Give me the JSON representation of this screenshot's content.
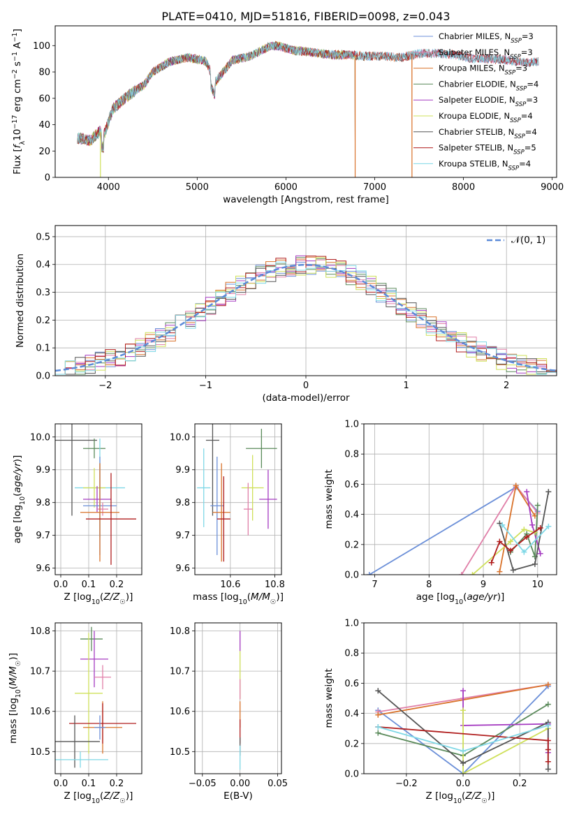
{
  "chart_data": [
    {
      "id": "spectrum",
      "type": "line",
      "title": "PLATE=0410, MJD=51816, FIBERID=0098, z=0.043",
      "xlabel": "wavelength [Angstrom, rest frame]",
      "ylabel": "Flux [f_λ10^-17 erg cm^-2 s^-1 A^-1]",
      "xlim": [
        3400,
        9050
      ],
      "ylim": [
        0,
        115
      ],
      "xticks": [
        4000,
        5000,
        6000,
        7000,
        8000,
        9000
      ],
      "yticks": [
        0,
        20,
        40,
        60,
        80,
        100
      ],
      "grid": false,
      "legend_position": "top-right",
      "continuum": {
        "x": [
          3650,
          3800,
          3900,
          3950,
          4050,
          4150,
          4300,
          4400,
          4500,
          4700,
          4900,
          5100,
          5200,
          5400,
          5600,
          5800,
          5900,
          6100,
          6300,
          6500,
          6700,
          6900,
          7100,
          7300,
          7500,
          7700,
          7900,
          8100,
          8300,
          8500,
          8700,
          8850
        ],
        "y": [
          30,
          28,
          35,
          32,
          52,
          58,
          66,
          70,
          80,
          88,
          91,
          88,
          72,
          89,
          92,
          99,
          100,
          96,
          95,
          93,
          93,
          92,
          92,
          91,
          94,
          94,
          93,
          90,
          90,
          89,
          87,
          88
        ]
      },
      "series": [
        {
          "name": "Chabrier MILES, N_SSP=3",
          "color": "#6b8fd8",
          "x_end": 8850
        },
        {
          "name": "Salpeter MILES, N_SSP=3",
          "color": "#e07fa8",
          "x_end": 8850
        },
        {
          "name": "Kroupa MILES, N_SSP=3",
          "color": "#d9722a",
          "x_end": 7420
        },
        {
          "name": "Chabrier ELODIE, N_SSP=4",
          "color": "#5a8a5a",
          "x_end": 6780
        },
        {
          "name": "Salpeter ELODIE, N_SSP=3",
          "color": "#a53bc1",
          "x_end": 6780
        },
        {
          "name": "Kroupa ELODIE, N_SSP=4",
          "color": "#cfe05a",
          "x_end": 6780
        },
        {
          "name": "Chabrier STELIB, N_SSP=4",
          "color": "#555555",
          "x_end": 8850
        },
        {
          "name": "Salpeter STELIB, N_SSP=5",
          "color": "#b01d1d",
          "x_end": 8850
        },
        {
          "name": "Kroupa STELIB, N_SSP=4",
          "color": "#7fd8e6",
          "x_end": 8850
        }
      ],
      "drops": [
        3910,
        6780,
        7420
      ]
    },
    {
      "id": "residuals",
      "type": "line",
      "xlabel": "(data-model)/error",
      "ylabel": "Normed distribution",
      "xlim": [
        -2.5,
        2.5
      ],
      "ylim": [
        0,
        0.54
      ],
      "xticks": [
        -2,
        -1,
        0,
        1,
        2
      ],
      "yticks": [
        0.0,
        0.1,
        0.2,
        0.3,
        0.4,
        0.5
      ],
      "grid": true,
      "legend_position": "top-right",
      "legend": "𝒩(0, 1)",
      "bin_width": 0.1,
      "step_series_colors": [
        "#6b8fd8",
        "#e07fa8",
        "#d9722a",
        "#5a8a5a",
        "#a53bc1",
        "#cfe05a",
        "#555555",
        "#b01d1d",
        "#7fd8e6"
      ],
      "gaussian": {
        "color": "#5b8ad8",
        "sigma": 1
      }
    },
    {
      "id": "age_vs_Z",
      "type": "scatter",
      "xlabel": "Z [log10(Z/Z☉)]",
      "ylabel": "age  [log10(age/yr)]",
      "xlim": [
        -0.02,
        0.29
      ],
      "ylim": [
        9.58,
        10.04
      ],
      "xticks": [
        0.0,
        0.1,
        0.2
      ],
      "yticks": [
        9.6,
        9.7,
        9.8,
        9.9,
        10.0
      ],
      "grid": true,
      "points": [
        {
          "color": "#555555",
          "x": 0.04,
          "y": 9.99,
          "xerr": 0.09,
          "yerr": 0.23
        },
        {
          "color": "#5a8a5a",
          "x": 0.12,
          "y": 9.965,
          "xerr": 0.04,
          "yerr": 0.03
        },
        {
          "color": "#7fd8e6",
          "x": 0.14,
          "y": 9.845,
          "xerr": 0.09,
          "yerr": 0.15
        },
        {
          "color": "#cfe05a",
          "x": 0.12,
          "y": 9.845,
          "xerr": 0.04,
          "yerr": 0.06
        },
        {
          "color": "#a53bc1",
          "x": 0.13,
          "y": 9.81,
          "xerr": 0.05,
          "yerr": 0.04
        },
        {
          "color": "#6b8fd8",
          "x": 0.14,
          "y": 9.79,
          "xerr": 0.06,
          "yerr": 0.15
        },
        {
          "color": "#e07fa8",
          "x": 0.15,
          "y": 9.78,
          "xerr": 0.02,
          "yerr": 0.02
        },
        {
          "color": "#d9722a",
          "x": 0.14,
          "y": 9.77,
          "xerr": 0.07,
          "yerr": 0.15
        },
        {
          "color": "#b01d1d",
          "x": 0.18,
          "y": 9.75,
          "xerr": 0.09,
          "yerr": 0.14
        }
      ]
    },
    {
      "id": "age_vs_mass",
      "type": "scatter",
      "xlabel": "mass [log10(M/M☉)]",
      "xlim": [
        10.44,
        10.83
      ],
      "ylim": [
        9.58,
        10.04
      ],
      "xticks": [
        10.6,
        10.8
      ],
      "yticks": [
        9.6,
        9.7,
        9.8,
        9.9,
        10.0
      ],
      "xtick_labels": [
        "10.6",
        "10.8"
      ],
      "grid": true,
      "points": [
        {
          "color": "#555555",
          "x": 10.52,
          "y": 9.99,
          "xerr": 0.03,
          "yerr": 0.23
        },
        {
          "color": "#5a8a5a",
          "x": 10.74,
          "y": 9.965,
          "xerr": 0.07,
          "yerr": 0.06
        },
        {
          "color": "#7fd8e6",
          "x": 10.48,
          "y": 9.845,
          "xerr": 0.03,
          "yerr": 0.12
        },
        {
          "color": "#cfe05a",
          "x": 10.7,
          "y": 9.845,
          "xerr": 0.05,
          "yerr": 0.1
        },
        {
          "color": "#a53bc1",
          "x": 10.77,
          "y": 9.81,
          "xerr": 0.04,
          "yerr": 0.09
        },
        {
          "color": "#6b8fd8",
          "x": 10.54,
          "y": 9.79,
          "xerr": 0.03,
          "yerr": 0.15
        },
        {
          "color": "#e07fa8",
          "x": 10.68,
          "y": 9.78,
          "xerr": 0.02,
          "yerr": 0.08
        },
        {
          "color": "#d9722a",
          "x": 10.56,
          "y": 9.77,
          "xerr": 0.04,
          "yerr": 0.15
        },
        {
          "color": "#b01d1d",
          "x": 10.57,
          "y": 9.75,
          "xerr": 0.03,
          "yerr": 0.13
        }
      ]
    },
    {
      "id": "weight_vs_age",
      "type": "line",
      "xlabel": "age  [log10(age/yr)]",
      "ylabel": "mass weight",
      "xlim": [
        6.8,
        10.35
      ],
      "ylim": [
        0.0,
        1.0
      ],
      "xticks": [
        7,
        8,
        9,
        10
      ],
      "yticks": [
        0.0,
        0.2,
        0.4,
        0.6,
        0.8,
        1.0
      ],
      "grid": true,
      "series": [
        {
          "color": "#6b8fd8",
          "x": [
            6.9,
            9.6,
            10.0
          ],
          "y": [
            0.0,
            0.58,
            0.42
          ]
        },
        {
          "color": "#e07fa8",
          "x": [
            8.6,
            9.6,
            10.0
          ],
          "y": [
            0.0,
            0.59,
            0.41
          ]
        },
        {
          "color": "#d9722a",
          "x": [
            9.3,
            9.6,
            9.95
          ],
          "y": [
            0.02,
            0.59,
            0.39
          ]
        },
        {
          "color": "#5a8a5a",
          "x": [
            9.5,
            9.8,
            9.95,
            10.0
          ],
          "y": [
            0.15,
            0.27,
            0.12,
            0.46
          ]
        },
        {
          "color": "#a53bc1",
          "x": [
            9.8,
            9.9,
            10.05
          ],
          "y": [
            0.55,
            0.33,
            0.14
          ]
        },
        {
          "color": "#cfe05a",
          "x": [
            8.8,
            9.5,
            9.75,
            9.95
          ],
          "y": [
            0.0,
            0.22,
            0.3,
            0.28
          ]
        },
        {
          "color": "#555555",
          "x": [
            9.3,
            9.55,
            9.95,
            10.2
          ],
          "y": [
            0.34,
            0.03,
            0.07,
            0.55
          ]
        },
        {
          "color": "#b01d1d",
          "x": [
            9.15,
            9.3,
            9.5,
            9.8,
            10.05
          ],
          "y": [
            0.08,
            0.22,
            0.16,
            0.25,
            0.31
          ]
        },
        {
          "color": "#7fd8e6",
          "x": [
            9.35,
            9.75,
            10.2
          ],
          "y": [
            0.33,
            0.15,
            0.32
          ]
        }
      ]
    },
    {
      "id": "mass_vs_Z",
      "type": "scatter",
      "xlabel": "Z [log10(Z/Z☉)]",
      "ylabel": "mass [log10(M/M☉)]",
      "xlim": [
        -0.02,
        0.29
      ],
      "ylim": [
        10.445,
        10.82
      ],
      "xticks": [
        0.0,
        0.1,
        0.2
      ],
      "yticks": [
        10.5,
        10.6,
        10.7,
        10.8
      ],
      "grid": true,
      "points": [
        {
          "color": "#5a8a5a",
          "x": 0.11,
          "y": 10.78,
          "xerr": 0.04,
          "yerr": 0.03
        },
        {
          "color": "#a53bc1",
          "x": 0.12,
          "y": 10.73,
          "xerr": 0.05,
          "yerr": 0.07
        },
        {
          "color": "#e07fa8",
          "x": 0.15,
          "y": 10.685,
          "xerr": 0.03,
          "yerr": 0.03
        },
        {
          "color": "#cfe05a",
          "x": 0.1,
          "y": 10.645,
          "xerr": 0.05,
          "yerr": 0.15
        },
        {
          "color": "#d9722a",
          "x": 0.15,
          "y": 10.56,
          "xerr": 0.07,
          "yerr": 0.065
        },
        {
          "color": "#b01d1d",
          "x": 0.15,
          "y": 10.57,
          "xerr": 0.12,
          "yerr": 0.05
        },
        {
          "color": "#6b8fd8",
          "x": 0.14,
          "y": 10.56,
          "xerr": 0.02,
          "yerr": 0.03
        },
        {
          "color": "#555555",
          "x": 0.05,
          "y": 10.525,
          "xerr": 0.09,
          "yerr": 0.065
        },
        {
          "color": "#7fd8e6",
          "x": 0.07,
          "y": 10.48,
          "xerr": 0.1,
          "yerr": 0.02
        }
      ]
    },
    {
      "id": "mass_vs_EBV",
      "type": "scatter",
      "xlabel": "E(B-V)",
      "xlim": [
        -0.06,
        0.055
      ],
      "ylim": [
        10.445,
        10.82
      ],
      "xticks": [
        -0.05,
        0.0,
        0.05
      ],
      "xtick_labels": [
        "−0.05",
        "0.00",
        "0.05"
      ],
      "yticks": [
        10.5,
        10.6,
        10.7,
        10.8
      ],
      "grid": true,
      "vlines": [
        {
          "color": "#a53bc1",
          "y0": 10.75,
          "y1": 10.8
        },
        {
          "color": "#cfe05a",
          "y0": 10.63,
          "y1": 10.75
        },
        {
          "color": "#e07fa8",
          "y0": 10.63,
          "y1": 10.68
        },
        {
          "color": "#d9722a",
          "y0": 10.56,
          "y1": 10.625
        },
        {
          "color": "#b01d1d",
          "y0": 10.52,
          "y1": 10.58
        },
        {
          "color": "#555555",
          "y0": 10.49,
          "y1": 10.535
        },
        {
          "color": "#7fd8e6",
          "y0": 10.455,
          "y1": 10.515
        }
      ]
    },
    {
      "id": "weight_vs_Z",
      "type": "line",
      "xlabel": "Z [log10(Z/Z☉)]",
      "ylabel": "mass weight",
      "xlim": [
        -0.35,
        0.33
      ],
      "ylim": [
        0.0,
        1.0
      ],
      "xticks": [
        -0.2,
        0.0,
        0.2
      ],
      "xtick_labels": [
        "−0.2",
        "0.0",
        "0.2"
      ],
      "yticks": [
        0.0,
        0.2,
        0.4,
        0.6,
        0.8,
        1.0
      ],
      "grid": true,
      "series": [
        {
          "color": "#6b8fd8",
          "x": [
            -0.3,
            0.0,
            0.3
          ],
          "y": [
            0.42,
            0.0,
            0.58
          ]
        },
        {
          "color": "#e07fa8",
          "x": [
            -0.3,
            0.0,
            0.3
          ],
          "y": [
            0.41,
            0.5,
            0.59
          ]
        },
        {
          "color": "#d9722a",
          "x": [
            -0.3,
            0.3
          ],
          "y": [
            0.39,
            0.59
          ]
        },
        {
          "color": "#5a8a5a",
          "x": [
            -0.3,
            0.0,
            0.3
          ],
          "y": [
            0.27,
            0.12,
            0.46
          ]
        },
        {
          "color": "#a53bc1",
          "x": [
            0.0,
            0.0,
            0.3,
            0.3
          ],
          "y": [
            0.55,
            0.32,
            0.33,
            0.14
          ]
        },
        {
          "color": "#cfe05a",
          "x": [
            0.0,
            0.0,
            0.3
          ],
          "y": [
            0.42,
            0.0,
            0.3
          ]
        },
        {
          "color": "#555555",
          "x": [
            -0.3,
            0.0,
            0.3,
            0.3
          ],
          "y": [
            0.55,
            0.07,
            0.34,
            0.03
          ]
        },
        {
          "color": "#b01d1d",
          "x": [
            -0.3,
            0.3,
            0.3,
            0.3
          ],
          "y": [
            0.31,
            0.22,
            0.16,
            0.08
          ]
        },
        {
          "color": "#7fd8e6",
          "x": [
            -0.3,
            0.0,
            0.3
          ],
          "y": [
            0.31,
            0.15,
            0.32
          ]
        }
      ]
    }
  ]
}
